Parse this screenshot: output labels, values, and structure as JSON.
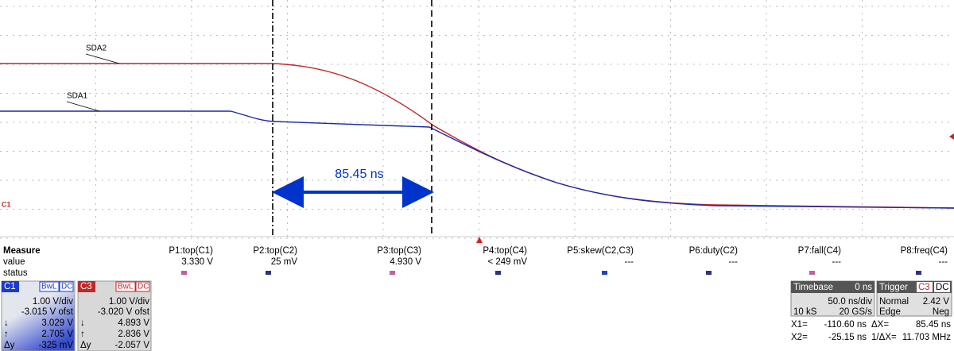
{
  "waveform": {
    "traces": [
      {
        "label": "SDA2"
      },
      {
        "label": "SDA1"
      }
    ],
    "annotation": "85.45 ns",
    "channel_marker": "C1"
  },
  "measure": {
    "header": [
      "Measure",
      "value",
      "status"
    ],
    "columns": [
      {
        "name": "P1:top(C1)",
        "value": "3.330 V"
      },
      {
        "name": "P2:top(C2)",
        "value": "25 mV"
      },
      {
        "name": "P3:top(C3)",
        "value": "4.930 V"
      },
      {
        "name": "P4:top(C4)",
        "value": "< 249 mV"
      },
      {
        "name": "P5:skew(C2,C3)",
        "value": "---"
      },
      {
        "name": "P6:duty(C2)",
        "value": "---"
      },
      {
        "name": "P7:fall(C4)",
        "value": "---"
      },
      {
        "name": "P8:freq(C4)",
        "value": "---"
      }
    ]
  },
  "channels": [
    {
      "name": "C1",
      "bw": "BwL",
      "coupling": "DC",
      "scale": "1.00 V/div",
      "offset": "-3.015 V ofst",
      "cursors": [
        {
          "symbol": "↓",
          "value": "3.029 V"
        },
        {
          "symbol": "↑",
          "value": "2.705 V"
        },
        {
          "symbol": "Δy",
          "value": "-325 mV"
        }
      ]
    },
    {
      "name": "C3",
      "bw": "BwL",
      "coupling": "DC",
      "scale": "1.00 V/div",
      "offset": "-3.020 V ofst",
      "cursors": [
        {
          "symbol": "↓",
          "value": "4.893 V"
        },
        {
          "symbol": "↑",
          "value": "2.836 V"
        },
        {
          "symbol": "Δy",
          "value": "-2.057 V"
        }
      ]
    }
  ],
  "timebase": {
    "title": "Timebase",
    "delay": "0 ns",
    "scale": "50.0 ns/div",
    "samples": "10 kS",
    "rate": "20 GS/s"
  },
  "trigger": {
    "title": "Trigger",
    "source": "C3",
    "coupling": "DC",
    "mode": "Normal",
    "level": "2.42 V",
    "type": "Edge",
    "slope": "Neg"
  },
  "cursors": {
    "x1_label": "X1=",
    "x1": "-110.60 ns",
    "dx_label": "ΔX=",
    "dx": "85.45 ns",
    "x2_label": "X2=",
    "x2": "-25.15 ns",
    "inv_label": "1/ΔX=",
    "inv": "11.703 MHz"
  }
}
